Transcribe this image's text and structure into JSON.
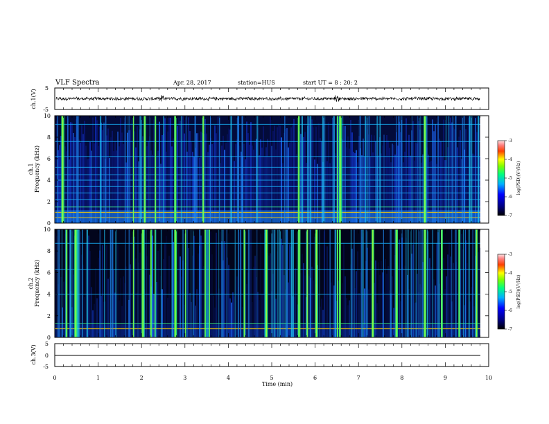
{
  "header": {
    "title": "VLF Spectra",
    "date": "Apr. 28, 2017",
    "station": "station=HUS",
    "start_ut": "start UT =  8 : 20: 2"
  },
  "chart_data": [
    {
      "type": "line",
      "id": "ch1-waveform",
      "ylabel": "ch.1(V)",
      "ylim": [
        -5,
        5
      ],
      "yticks": [
        "5",
        "-5"
      ],
      "xlim": [
        0,
        10
      ],
      "baseline": 0,
      "note": "noisy waveform around 0 V, small spikes near 2.5 min and 6.5 min"
    },
    {
      "type": "heatmap",
      "id": "ch1-spectrogram",
      "ylabel": "Frequency (kHz)",
      "channel_label": "ch.1",
      "ylim": [
        0,
        10
      ],
      "yticks": [
        "0",
        "2",
        "4",
        "6",
        "8",
        "10"
      ],
      "xlim": [
        0,
        10
      ],
      "data_end_min": 9.8,
      "persistent_lines_khz": [
        0.5,
        1.0,
        1.5,
        2.2,
        2.8,
        3.4,
        4.0,
        4.5,
        5.2,
        6.2,
        7.6,
        9.2
      ],
      "strong_impulse_times_min": [
        0.15,
        1.8,
        2.05,
        2.3,
        2.75,
        3.4,
        5.6,
        6.5,
        6.55,
        8.5
      ],
      "colorbar": {
        "label": "log(PSD)(V²/Hz)",
        "range": [
          -7,
          -3
        ],
        "ticks": [
          "-3",
          "-4",
          "-5",
          "-6",
          "-7"
        ]
      }
    },
    {
      "type": "heatmap",
      "id": "ch2-spectrogram",
      "ylabel": "Frequency (kHz)",
      "channel_label": "ch.2",
      "ylim": [
        0,
        10
      ],
      "yticks": [
        "0",
        "2",
        "4",
        "6",
        "8",
        "10"
      ],
      "xlim": [
        0,
        10
      ],
      "data_end_min": 9.8,
      "persistent_lines_khz": [
        0.8,
        1.3,
        4.0,
        6.3,
        8.7
      ],
      "strong_impulse_times_min": [
        0.25,
        0.45,
        1.8,
        2.0,
        2.2,
        2.3,
        2.75,
        3.0,
        3.45,
        3.55,
        4.35,
        4.85,
        5.6,
        5.8,
        6.0,
        6.5,
        6.55,
        7.3,
        7.85,
        8.5,
        8.9,
        9.3,
        9.7
      ],
      "colorbar": {
        "label": "log(PSD)(V²/Hz)",
        "range": [
          -7,
          -3
        ],
        "ticks": [
          "-3",
          "-4",
          "-5",
          "-6",
          "-7"
        ]
      }
    },
    {
      "type": "line",
      "id": "ch3-waveform",
      "ylabel": "ch.3(V)",
      "ylim": [
        -5,
        5
      ],
      "yticks": [
        "5",
        "0",
        "-5"
      ],
      "xlim": [
        0,
        10
      ],
      "constant_value": 0
    }
  ],
  "x_axis": {
    "label": "Time (min)",
    "ticks": [
      "0",
      "1",
      "2",
      "3",
      "4",
      "5",
      "6",
      "7",
      "8",
      "9",
      "10"
    ]
  }
}
